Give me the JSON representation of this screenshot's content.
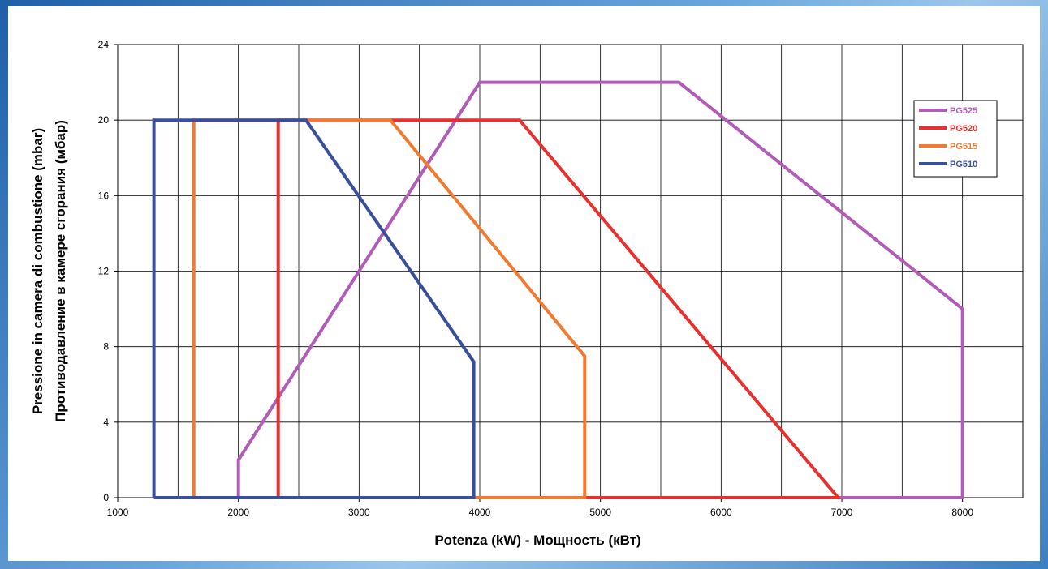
{
  "chart_data": {
    "type": "line",
    "xlabel": "Potenza (kW) - Мощность  (кВт)",
    "ylabel_lines": [
      "Pressione in camera di combustione (mbar)",
      "Противодавление в камере сгорания (мбар)"
    ],
    "xlim": [
      1000,
      8500
    ],
    "ylim": [
      0,
      24
    ],
    "x_ticks": [
      1000,
      2000,
      3000,
      4000,
      5000,
      6000,
      7000,
      8000
    ],
    "y_ticks": [
      0,
      4,
      8,
      12,
      16,
      20,
      24
    ],
    "x_grid_step": 500,
    "grid": true,
    "legend_position": "top-right",
    "series": [
      {
        "name": "PG525",
        "color": "#b05cb8",
        "points": [
          [
            2000,
            0
          ],
          [
            2000,
            2
          ],
          [
            4000,
            22
          ],
          [
            5650,
            22
          ],
          [
            8000,
            10
          ],
          [
            8000,
            0
          ],
          [
            2000,
            0
          ]
        ]
      },
      {
        "name": "PG520",
        "color": "#e8302e",
        "points": [
          [
            2330,
            0
          ],
          [
            2330,
            20
          ],
          [
            4330,
            20
          ],
          [
            6970,
            0
          ],
          [
            2330,
            0
          ]
        ]
      },
      {
        "name": "PG515",
        "color": "#f07a30",
        "points": [
          [
            1630,
            0
          ],
          [
            1630,
            20
          ],
          [
            3260,
            20
          ],
          [
            4870,
            7.5
          ],
          [
            4870,
            0
          ],
          [
            1630,
            0
          ]
        ]
      },
      {
        "name": "PG510",
        "color": "#3a4f9c",
        "points": [
          [
            1300,
            0
          ],
          [
            1300,
            20
          ],
          [
            2560,
            20
          ],
          [
            3950,
            7.2
          ],
          [
            3950,
            0
          ],
          [
            1300,
            0
          ]
        ]
      }
    ]
  }
}
